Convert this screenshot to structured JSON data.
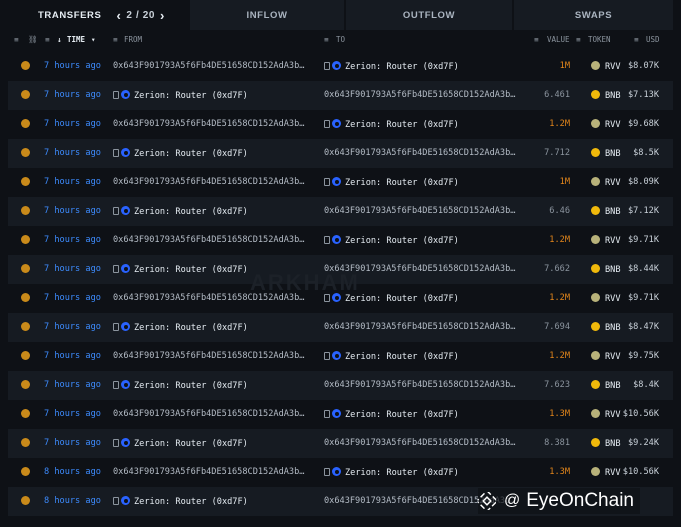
{
  "tabs": {
    "transfers": "TRANSFERS",
    "pager": "2 / 20",
    "inflow": "INFLOW",
    "outflow": "OUTFLOW",
    "swaps": "SWAPS"
  },
  "columns": {
    "time": "TIME",
    "from": "FROM",
    "to": "TO",
    "value": "VALUE",
    "token": "TOKEN",
    "usd": "USD"
  },
  "watermark": "ARKHAM",
  "brand": "EyeOnChain",
  "colors": {
    "rvv_value": "#e3861b",
    "link": "#3d8bfd",
    "bnb_token": "#f0b90b",
    "rvv_token": "#b8b27a",
    "zerion": "#2962ff"
  },
  "rows": [
    {
      "time": "7 hours ago",
      "from": "0x643F901793A5f6Fb4DE51658CD152AdA3b…",
      "to": "Zerion: Router (0xd7F)",
      "value": "1M",
      "token": "RVV",
      "usd": "$8.07K"
    },
    {
      "time": "7 hours ago",
      "from": "Zerion: Router (0xd7F)",
      "to": "0x643F901793A5f6Fb4DE51658CD152AdA3b…",
      "value": "6.461",
      "token": "BNB",
      "usd": "$7.13K"
    },
    {
      "time": "7 hours ago",
      "from": "0x643F901793A5f6Fb4DE51658CD152AdA3b…",
      "to": "Zerion: Router (0xd7F)",
      "value": "1.2M",
      "token": "RVV",
      "usd": "$9.68K"
    },
    {
      "time": "7 hours ago",
      "from": "Zerion: Router (0xd7F)",
      "to": "0x643F901793A5f6Fb4DE51658CD152AdA3b…",
      "value": "7.712",
      "token": "BNB",
      "usd": "$8.5K"
    },
    {
      "time": "7 hours ago",
      "from": "0x643F901793A5f6Fb4DE51658CD152AdA3b…",
      "to": "Zerion: Router (0xd7F)",
      "value": "1M",
      "token": "RVV",
      "usd": "$8.09K"
    },
    {
      "time": "7 hours ago",
      "from": "Zerion: Router (0xd7F)",
      "to": "0x643F901793A5f6Fb4DE51658CD152AdA3b…",
      "value": "6.46",
      "token": "BNB",
      "usd": "$7.12K"
    },
    {
      "time": "7 hours ago",
      "from": "0x643F901793A5f6Fb4DE51658CD152AdA3b…",
      "to": "Zerion: Router (0xd7F)",
      "value": "1.2M",
      "token": "RVV",
      "usd": "$9.71K"
    },
    {
      "time": "7 hours ago",
      "from": "Zerion: Router (0xd7F)",
      "to": "0x643F901793A5f6Fb4DE51658CD152AdA3b…",
      "value": "7.662",
      "token": "BNB",
      "usd": "$8.44K"
    },
    {
      "time": "7 hours ago",
      "from": "0x643F901793A5f6Fb4DE51658CD152AdA3b…",
      "to": "Zerion: Router (0xd7F)",
      "value": "1.2M",
      "token": "RVV",
      "usd": "$9.71K"
    },
    {
      "time": "7 hours ago",
      "from": "Zerion: Router (0xd7F)",
      "to": "0x643F901793A5f6Fb4DE51658CD152AdA3b…",
      "value": "7.694",
      "token": "BNB",
      "usd": "$8.47K"
    },
    {
      "time": "7 hours ago",
      "from": "0x643F901793A5f6Fb4DE51658CD152AdA3b…",
      "to": "Zerion: Router (0xd7F)",
      "value": "1.2M",
      "token": "RVV",
      "usd": "$9.75K"
    },
    {
      "time": "7 hours ago",
      "from": "Zerion: Router (0xd7F)",
      "to": "0x643F901793A5f6Fb4DE51658CD152AdA3b…",
      "value": "7.623",
      "token": "BNB",
      "usd": "$8.4K"
    },
    {
      "time": "7 hours ago",
      "from": "0x643F901793A5f6Fb4DE51658CD152AdA3b…",
      "to": "Zerion: Router (0xd7F)",
      "value": "1.3M",
      "token": "RVV",
      "usd": "$10.56K"
    },
    {
      "time": "7 hours ago",
      "from": "Zerion: Router (0xd7F)",
      "to": "0x643F901793A5f6Fb4DE51658CD152AdA3b…",
      "value": "8.381",
      "token": "BNB",
      "usd": "$9.24K"
    },
    {
      "time": "8 hours ago",
      "from": "0x643F901793A5f6Fb4DE51658CD152AdA3b…",
      "to": "Zerion: Router (0xd7F)",
      "value": "1.3M",
      "token": "RVV",
      "usd": "$10.56K"
    },
    {
      "time": "8 hours ago",
      "from": "Zerion: Router (0xd7F)",
      "to": "0x643F901793A5f6Fb4DE51658CD152AdA3b…",
      "value": "",
      "token": "",
      "usd": ""
    }
  ]
}
